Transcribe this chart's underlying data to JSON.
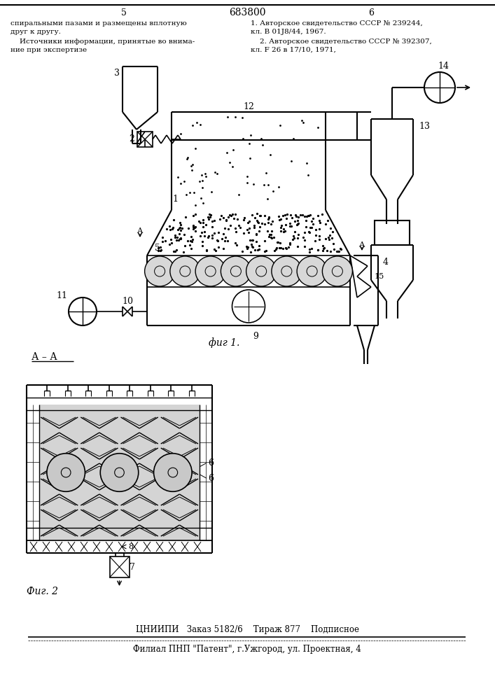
{
  "page_num_left": "5",
  "page_num_center": "683800",
  "page_num_right": "6",
  "text_left_1": "спиральными пазами и размещены вплотную",
  "text_left_2": "друг к другу.",
  "text_left_3": "    Источники информации, принятые во внима-",
  "text_left_4": "ние при экспертизе",
  "text_right_1": "1. Авторское свидетельство СССР № 239244,",
  "text_right_2": "кл. В 01J8/44, 1967.",
  "text_right_3": "    2. Авторское свидетельство СССР № 392307,",
  "text_right_4": "кл. F 26 в 17/10, 1971,",
  "fig1_label": "фиг 1.",
  "fig2_label": "Фиг. 2",
  "section_label": "А – А",
  "footer_1": "ЦНИИПИ   Заказ 5182/6    Тираж 877    Подписное",
  "footer_2": "Филиал ПНП \"Патент\", г.Ужгород, ул. Проектная, 4",
  "bg_color": "#ffffff"
}
